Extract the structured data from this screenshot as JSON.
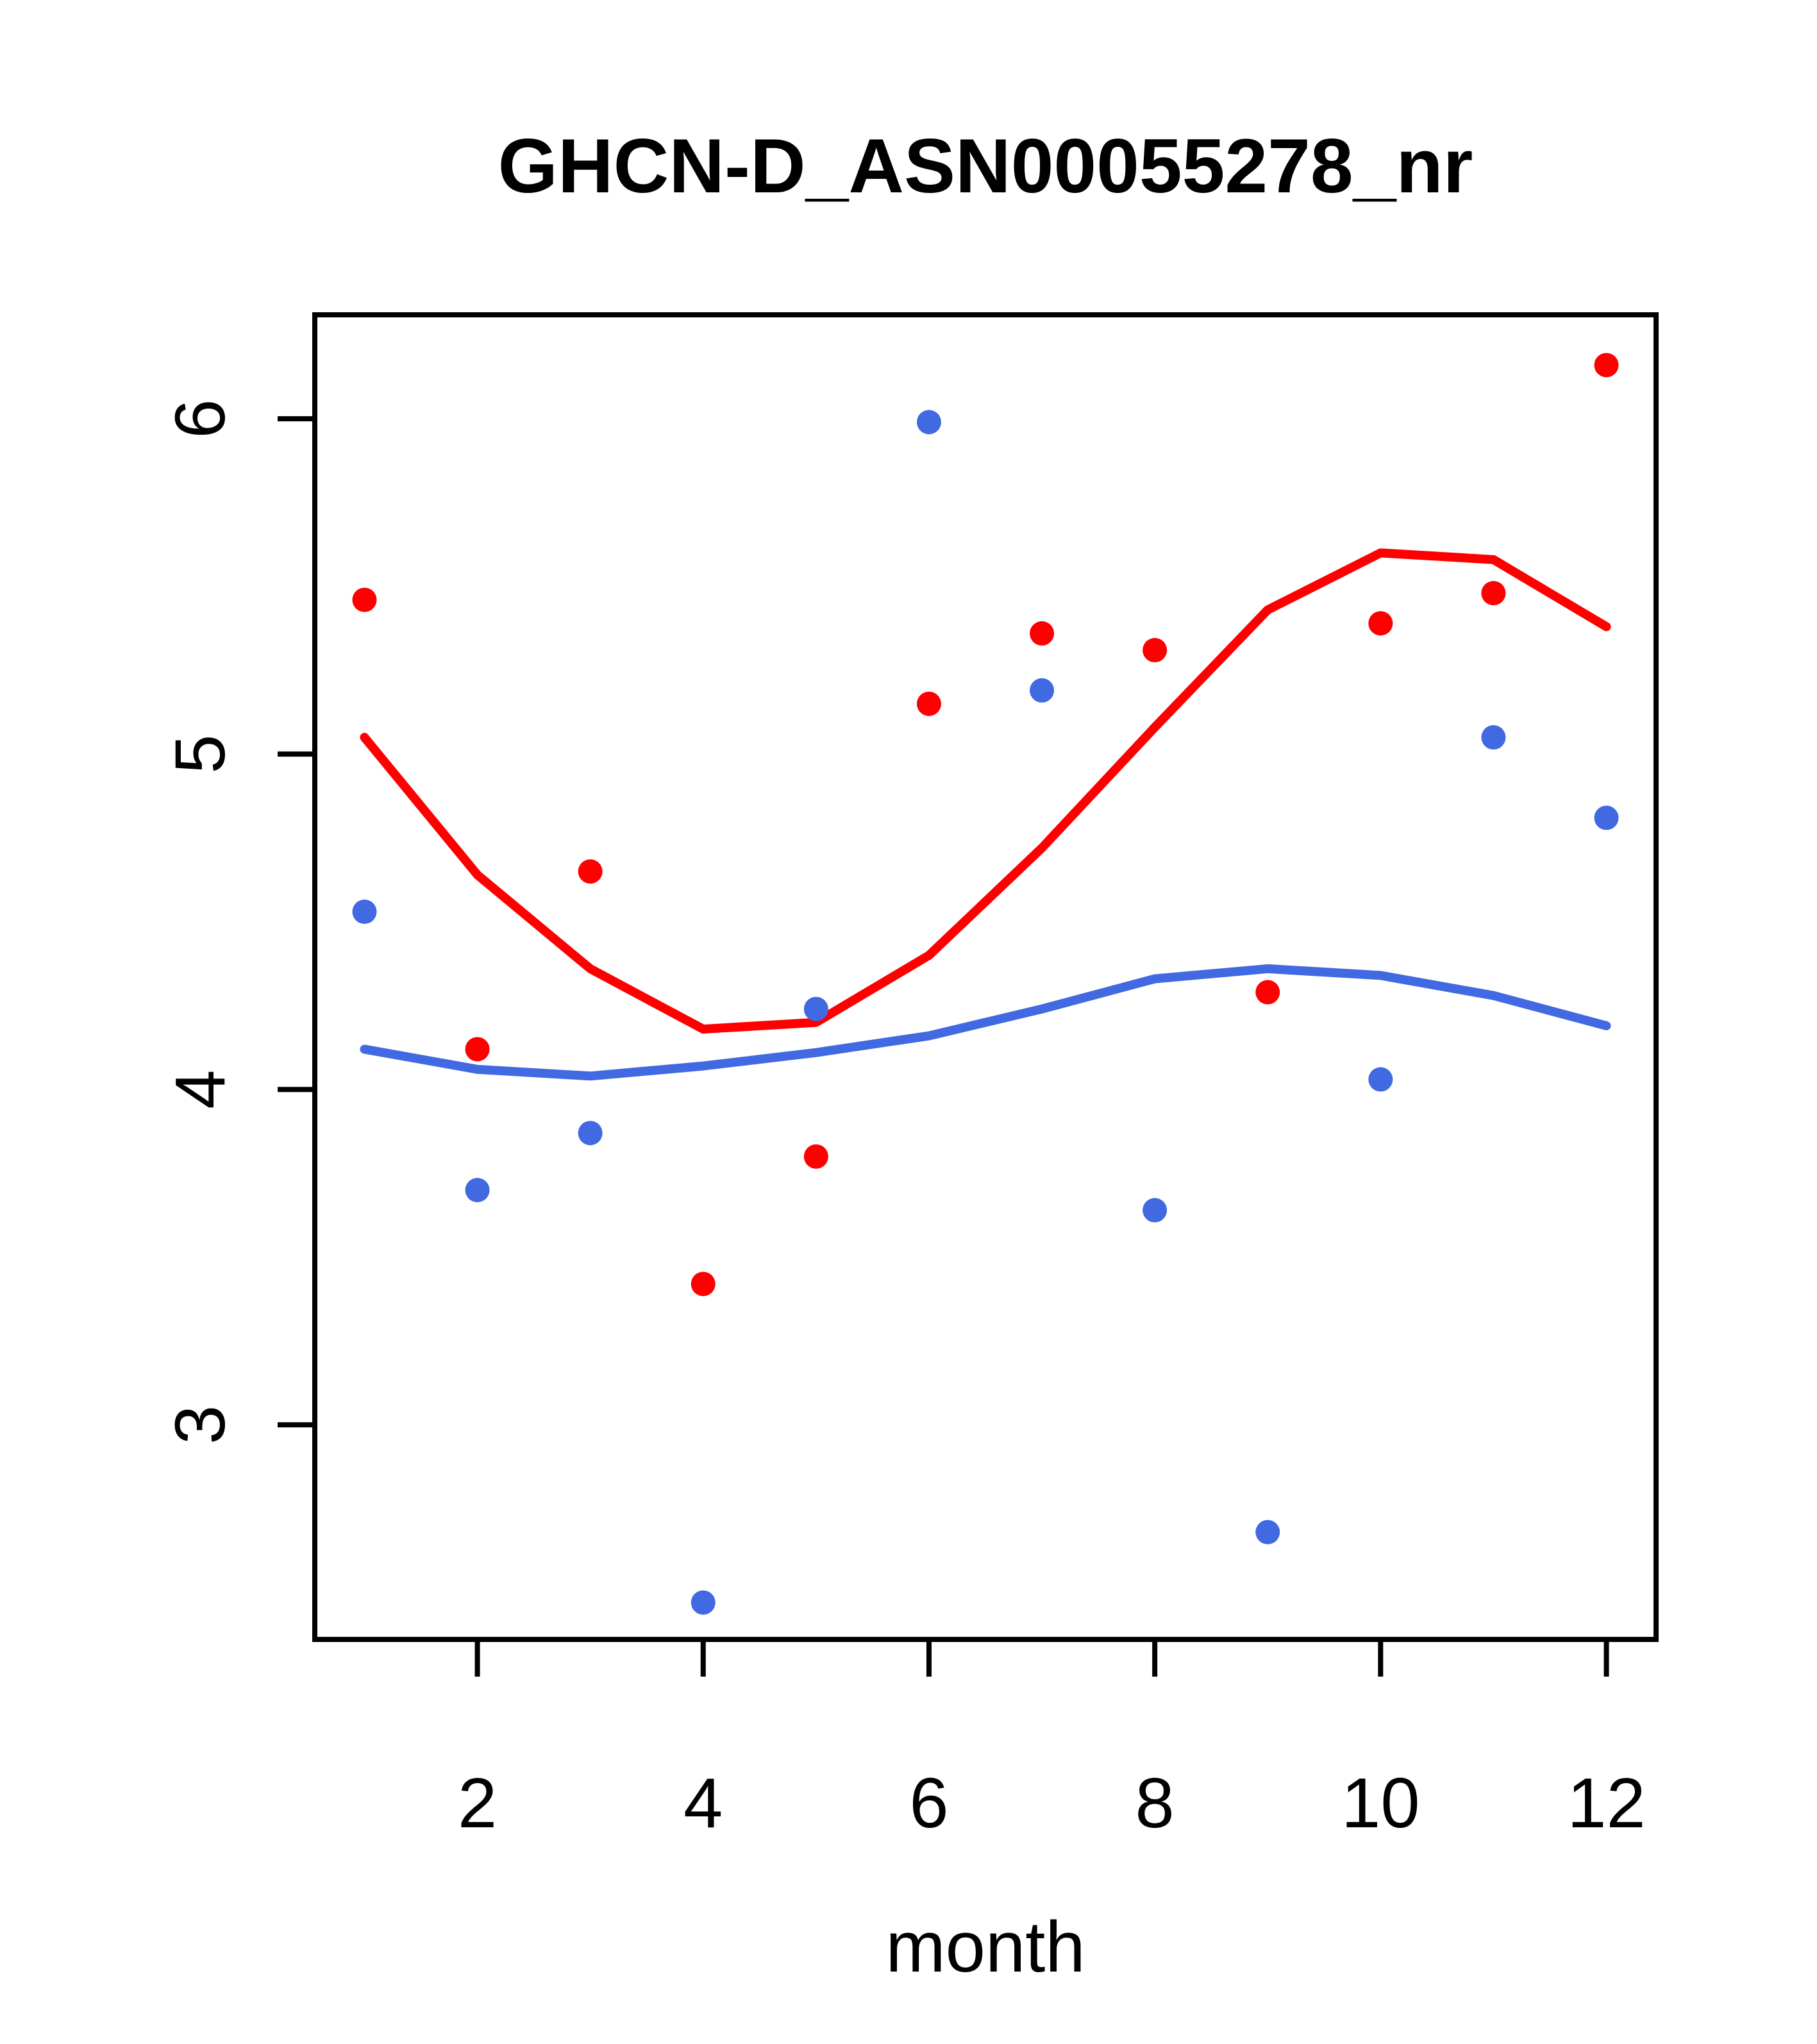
{
  "chart_data": {
    "type": "scatter",
    "title": "GHCN-D_ASN00055278_nr",
    "xlabel": "month",
    "ylabel": "",
    "x": [
      1,
      2,
      3,
      4,
      5,
      6,
      7,
      8,
      9,
      10,
      11,
      12
    ],
    "x_ticks": [
      2,
      4,
      6,
      8,
      10,
      12
    ],
    "y_ticks": [
      3,
      4,
      5,
      6
    ],
    "xlim": [
      0.56,
      12.44
    ],
    "ylim": [
      2.36,
      6.31
    ],
    "grid": false,
    "legend_position": "none",
    "colors": {
      "red_series": "#FF0000",
      "blue_series": "#4169E1",
      "axis": "#000000",
      "background": "#FFFFFF"
    },
    "series": [
      {
        "name": "red-points",
        "render": "points",
        "color": "#FF0000",
        "values": [
          5.46,
          4.12,
          4.65,
          3.42,
          3.8,
          5.15,
          5.36,
          5.31,
          4.29,
          5.39,
          5.48,
          6.16
        ]
      },
      {
        "name": "blue-points",
        "render": "points",
        "color": "#4169E1",
        "values": [
          4.53,
          3.7,
          3.87,
          2.47,
          4.24,
          5.99,
          5.19,
          3.64,
          2.68,
          4.03,
          5.05,
          4.81
        ]
      },
      {
        "name": "red-trend",
        "render": "line",
        "color": "#FF0000",
        "values": [
          5.05,
          4.64,
          4.36,
          4.18,
          4.2,
          4.4,
          4.72,
          5.08,
          5.43,
          5.6,
          5.58,
          5.38
        ]
      },
      {
        "name": "blue-trend",
        "render": "line",
        "color": "#4169E1",
        "values": [
          4.12,
          4.06,
          4.04,
          4.07,
          4.11,
          4.16,
          4.24,
          4.33,
          4.36,
          4.34,
          4.28,
          4.19
        ]
      }
    ]
  }
}
